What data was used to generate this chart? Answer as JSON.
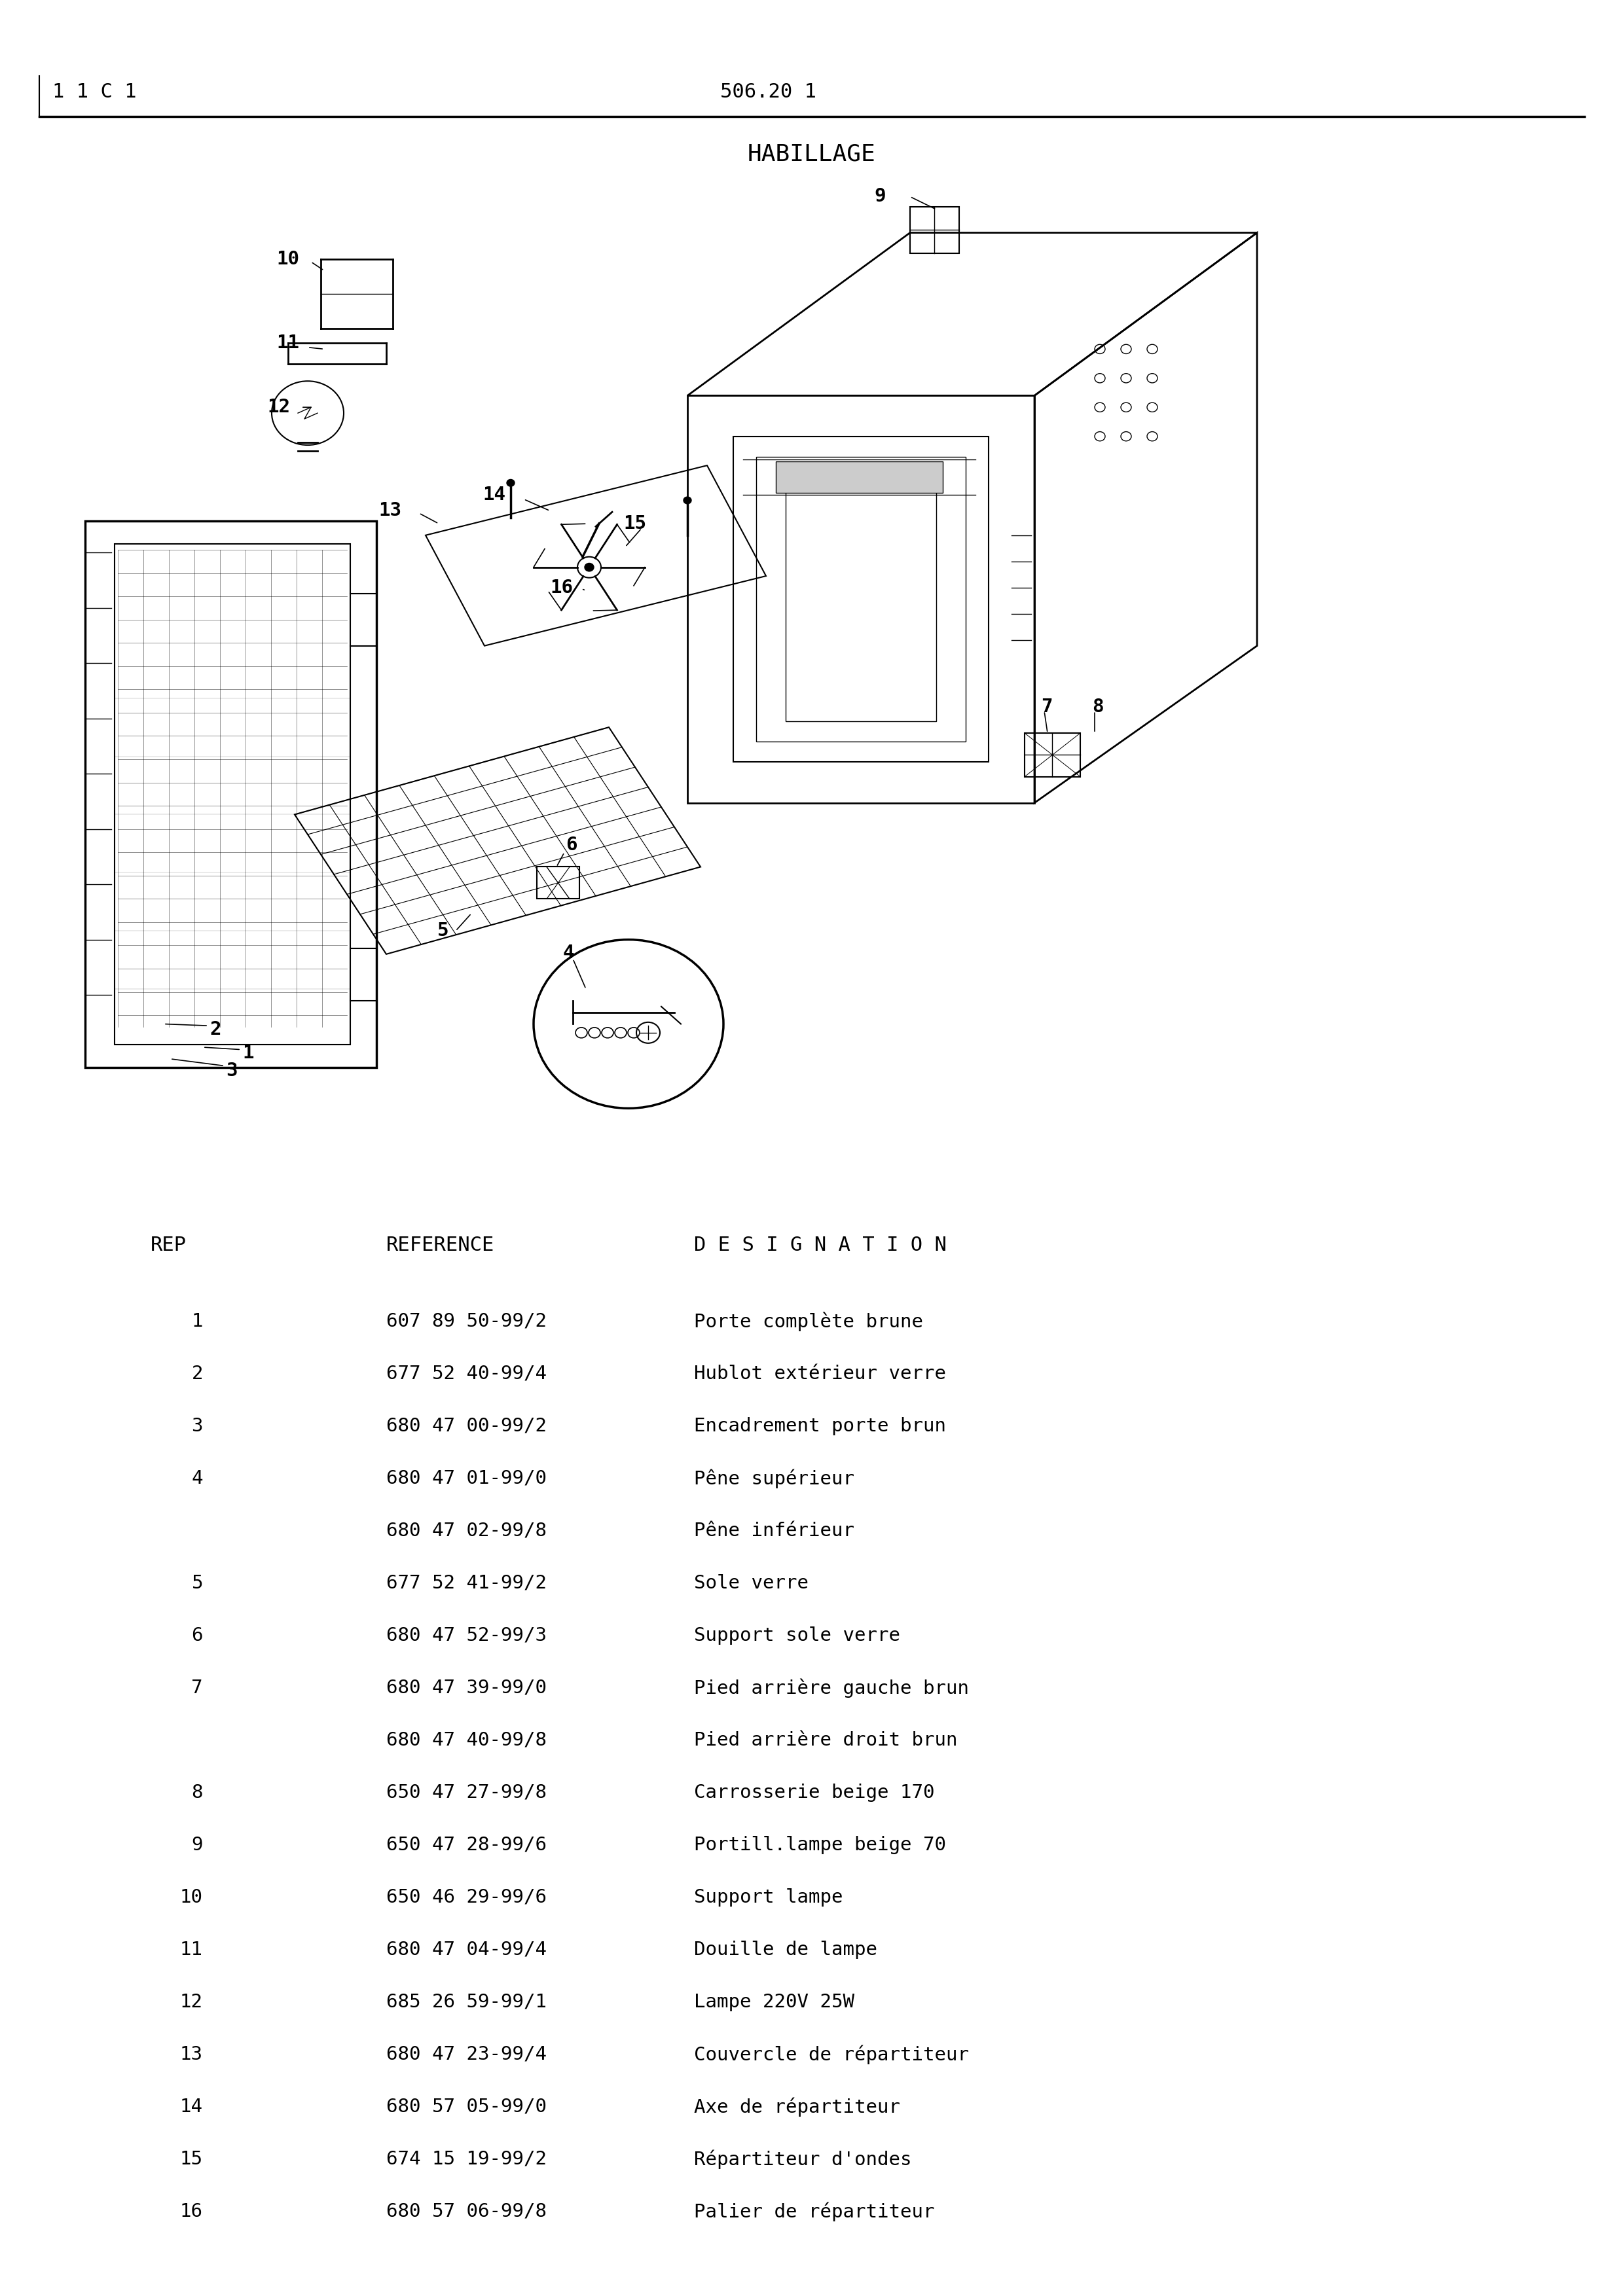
{
  "page_header_left": "1 1 C 1",
  "page_header_center": "506.20 1",
  "section_title": "HABILLAGE",
  "bg_color": "#ffffff",
  "table_header": [
    "REP",
    "REFERENCE",
    "D E S I G N A T I O N"
  ],
  "parts": [
    {
      "rep": "1",
      "ref": "607 89 50-99/2",
      "desc": "Porte complète brune"
    },
    {
      "rep": "2",
      "ref": "677 52 40-99/4",
      "desc": "Hublot extérieur verre"
    },
    {
      "rep": "3",
      "ref": "680 47 00-99/2",
      "desc": "Encadrement porte brun"
    },
    {
      "rep": "4",
      "ref": "680 47 01-99/0",
      "desc": "Pêne supérieur"
    },
    {
      "rep": "",
      "ref": "680 47 02-99/8",
      "desc": "Pêne inférieur"
    },
    {
      "rep": "5",
      "ref": "677 52 41-99/2",
      "desc": "Sole verre"
    },
    {
      "rep": "6",
      "ref": "680 47 52-99/3",
      "desc": "Support sole verre"
    },
    {
      "rep": "7",
      "ref": "680 47 39-99/0",
      "desc": "Pied arrière gauche brun"
    },
    {
      "rep": "",
      "ref": "680 47 40-99/8",
      "desc": "Pied arrière droit brun"
    },
    {
      "rep": "8",
      "ref": "650 47 27-99/8",
      "desc": "Carrosserie beige 170"
    },
    {
      "rep": "9",
      "ref": "650 47 28-99/6",
      "desc": "Portill.lampe beige 70"
    },
    {
      "rep": "10",
      "ref": "650 46 29-99/6",
      "desc": "Support lampe"
    },
    {
      "rep": "11",
      "ref": "680 47 04-99/4",
      "desc": "Douille de lampe"
    },
    {
      "rep": "12",
      "ref": "685 26 59-99/1",
      "desc": "Lampe 220V 25W"
    },
    {
      "rep": "13",
      "ref": "680 47 23-99/4",
      "desc": "Couvercle de répartiteur"
    },
    {
      "rep": "14",
      "ref": "680 57 05-99/0",
      "desc": "Axe de répartiteur"
    },
    {
      "rep": "15",
      "ref": "674 15 19-99/2",
      "desc": "Répartiteur d'ondes"
    },
    {
      "rep": "16",
      "ref": "680 57 06-99/8",
      "desc": "Palier de répartiteur"
    }
  ],
  "footer": "-"
}
